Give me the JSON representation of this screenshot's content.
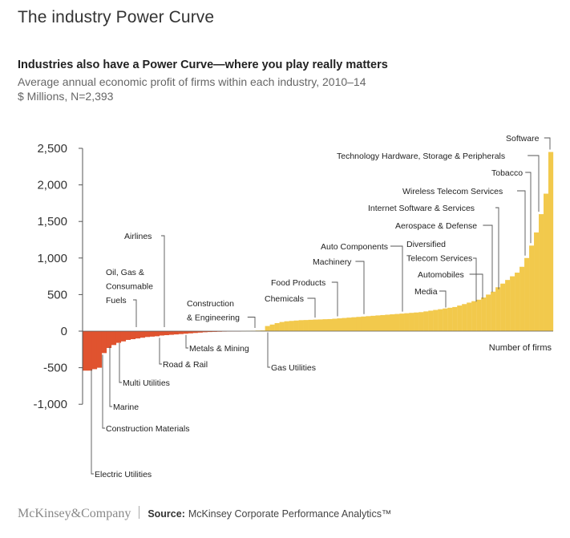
{
  "page_title": "The industry Power Curve",
  "footer": {
    "brand": "McKinsey&Company",
    "source_label": "Source:",
    "source_text": "McKinsey Corporate Performance Analytics™"
  },
  "colors": {
    "negative": "#e0532f",
    "positive": "#f2c94c",
    "axis": "#555555",
    "leader": "#555555"
  },
  "chart_data": {
    "type": "bar",
    "title": "Industries also have a Power Curve—where you play really matters",
    "subtitle": [
      "Average annual economic profit of firms within each industry, 2010–14",
      "$ Millions, N=2,393"
    ],
    "xlabel": "Number of firms",
    "ylabel": "",
    "ylim": [
      -1000,
      2500
    ],
    "yticks": [
      2500,
      2000,
      1500,
      1000,
      500,
      0,
      -500,
      -1000
    ],
    "ytick_labels": [
      "2,500",
      "2,000",
      "1,500",
      "1,000",
      "500",
      "0",
      "-500",
      "-1,000"
    ],
    "negative_values": [
      -540,
      -540,
      -520,
      -500,
      -300,
      -230,
      -190,
      -160,
      -140,
      -120,
      -110,
      -100,
      -90,
      -80,
      -75,
      -70,
      -60,
      -55,
      -50,
      -45,
      -40,
      -35,
      -30,
      -25,
      -20,
      -15,
      -12,
      -10,
      -8,
      -6,
      -4,
      -3,
      -2
    ],
    "positive_values": [
      1,
      3,
      5,
      8,
      10,
      70,
      90,
      110,
      125,
      135,
      140,
      145,
      150,
      152,
      155,
      158,
      160,
      163,
      165,
      170,
      175,
      180,
      185,
      190,
      195,
      200,
      205,
      210,
      215,
      220,
      225,
      230,
      235,
      240,
      245,
      250,
      255,
      260,
      270,
      280,
      290,
      300,
      310,
      320,
      330,
      350,
      370,
      390,
      410,
      430,
      460,
      500,
      540,
      600,
      650,
      700,
      750,
      800,
      880,
      1000,
      1170,
      1350,
      1600,
      1880,
      2450
    ],
    "annotations": [
      {
        "label": "Electric Utilities",
        "lines": [
          "Electric Utilities"
        ],
        "bar": 3
      },
      {
        "label": "Construction Materials",
        "lines": [
          "Construction Materials"
        ],
        "bar": 4
      },
      {
        "label": "Marine",
        "lines": [
          "Marine"
        ],
        "bar": 6
      },
      {
        "label": "Multi Utilities",
        "lines": [
          "Multi Utilities"
        ],
        "bar": 8
      },
      {
        "label": "Oil, Gas & Consumable Fuels",
        "lines": [
          "Oil, Gas &",
          "Consumable",
          "Fuels"
        ],
        "bar": 11
      },
      {
        "label": "Road & Rail",
        "lines": [
          "Road & Rail"
        ],
        "bar": 15
      },
      {
        "label": "Airlines",
        "lines": [
          "Airlines"
        ],
        "bar": 17
      },
      {
        "label": "Metals & Mining",
        "lines": [
          "Metals & Mining"
        ],
        "bar": 22
      },
      {
        "label": "Construction & Engineering",
        "lines": [
          "Construction",
          "& Engineering"
        ],
        "bar": 31
      },
      {
        "label": "Gas Utilities",
        "lines": [
          "Gas Utilities"
        ],
        "bar": 35
      },
      {
        "label": "Chemicals",
        "lines": [
          "Chemicals"
        ],
        "bar": 46
      },
      {
        "label": "Food Products",
        "lines": [
          "Food Products"
        ],
        "bar": 52
      },
      {
        "label": "Machinery",
        "lines": [
          "Machinery"
        ],
        "bar": 58
      },
      {
        "label": "Auto Components",
        "lines": [
          "Auto Components"
        ],
        "bar": 65
      },
      {
        "label": "Media",
        "lines": [
          "Media"
        ],
        "bar": 73
      },
      {
        "label": "Diversified Telecom Services",
        "lines": [
          "Diversified",
          "Telecom Services"
        ],
        "bar": 79
      },
      {
        "label": "Automobiles",
        "lines": [
          "Automobiles"
        ],
        "bar": 81
      },
      {
        "label": "Aerospace & Defense",
        "lines": [
          "Aerospace & Defense"
        ],
        "bar": 84
      },
      {
        "label": "Internet Software & Services",
        "lines": [
          "Internet Software & Services"
        ],
        "bar": 85
      },
      {
        "label": "Wireless Telecom Services",
        "lines": [
          "Wireless Telecom Services"
        ],
        "bar": 92
      },
      {
        "label": "Tobacco",
        "lines": [
          "Tobacco"
        ],
        "bar": 93
      },
      {
        "label": "Technology Hardware, Storage & Peripherals",
        "lines": [
          "Technology Hardware, Storage & Peripherals"
        ],
        "bar": 95
      },
      {
        "label": "Software",
        "lines": [
          "Software"
        ],
        "bar": 97
      }
    ]
  }
}
